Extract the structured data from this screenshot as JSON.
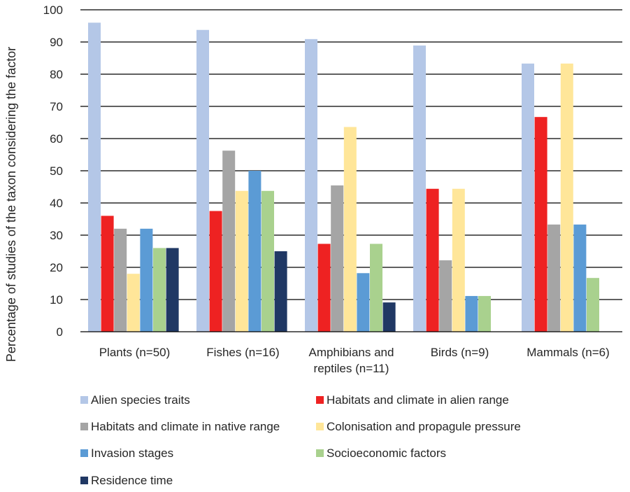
{
  "chart_data": {
    "type": "bar",
    "title": "",
    "xlabel": "",
    "ylabel": "Percentage of studies of the  taxon considering the factor",
    "ylim": [
      0,
      100
    ],
    "yticks": [
      0,
      10,
      20,
      30,
      40,
      50,
      60,
      70,
      80,
      90,
      100
    ],
    "grid": true,
    "legend_position": "bottom",
    "categories": [
      "Plants (n=50)",
      "Fishes (n=16)",
      "Amphibians and reptiles (n=11)",
      "Birds (n=9)",
      "Mammals (n=6)"
    ],
    "category_lines": [
      [
        "Plants (n=50)"
      ],
      [
        "Fishes (n=16)"
      ],
      [
        "Amphibians and",
        "reptiles (n=11)"
      ],
      [
        "Birds (n=9)"
      ],
      [
        "Mammals (n=6)"
      ]
    ],
    "series": [
      {
        "name": "Alien species traits",
        "color": "#b4c7e7",
        "values": [
          96,
          93.75,
          90.9,
          88.9,
          83.3
        ]
      },
      {
        "name": "Habitats and climate in alien range",
        "color": "#ee2222",
        "values": [
          36,
          37.5,
          27.3,
          44.4,
          66.7
        ]
      },
      {
        "name": "Habitats and climate in native range",
        "color": "#a5a5a5",
        "values": [
          32,
          56.25,
          45.45,
          22.2,
          33.3
        ]
      },
      {
        "name": "Colonisation and propagule pressure",
        "color": "#ffe699",
        "values": [
          18,
          43.75,
          63.6,
          44.4,
          83.3
        ]
      },
      {
        "name": "Invasion stages",
        "color": "#5b9bd5",
        "values": [
          32,
          50,
          18.2,
          11.1,
          33.3
        ]
      },
      {
        "name": "Socioeconomic factors",
        "color": "#a9d18e",
        "values": [
          26,
          43.75,
          27.3,
          11.1,
          16.7
        ]
      },
      {
        "name": "Residence time",
        "color": "#203864",
        "values": [
          26,
          25,
          9.1,
          0,
          0
        ]
      }
    ]
  }
}
